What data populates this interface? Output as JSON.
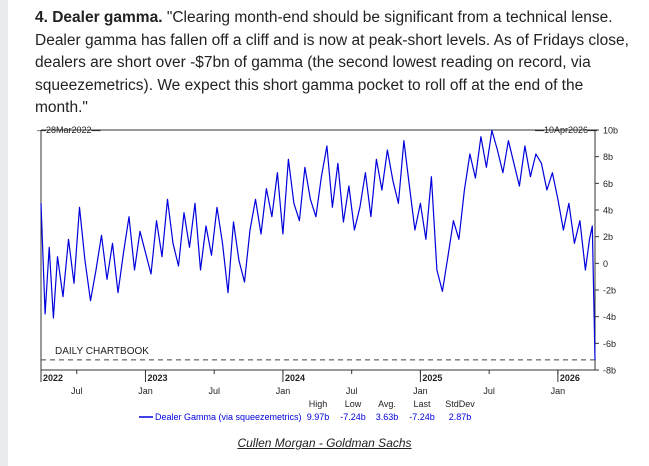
{
  "article": {
    "heading": "4. Dealer gamma.",
    "body": "\"Clearing month-end should be significant from a technical lense. Dealer gamma has fallen off a cliff and is now at peak-short levels. As of Fridays close, dealers are short over -$7bn of gamma (the second lowest reading on record, via squeezemetrics). We expect this short gamma pocket to roll off at the end of the month.\"",
    "caption": "Cullen Morgan - Goldman Sachs"
  },
  "colors": {
    "series": "#0000dd",
    "axis": "#333333",
    "text": "#222222"
  },
  "chart_data": {
    "type": "line",
    "title": "",
    "date_start_label": "28Mar2022",
    "date_end_label": "10Apr2026",
    "watermark": "DAILY CHARTBOOK",
    "ylim": [
      -8,
      10
    ],
    "y_ticks": [
      "10b",
      "8b",
      "6b",
      "4b",
      "2b",
      "0",
      "-2b",
      "-4b",
      "-6b",
      "-8b"
    ],
    "y_tick_values": [
      10,
      8,
      6,
      4,
      2,
      0,
      -2,
      -4,
      -6,
      -8
    ],
    "x_year_labels": [
      {
        "label": "2022",
        "t": 2022.24
      },
      {
        "label": "2023",
        "t": 2023.0
      },
      {
        "label": "2024",
        "t": 2024.0
      },
      {
        "label": "2025",
        "t": 2025.0
      },
      {
        "label": "2026",
        "t": 2026.0
      }
    ],
    "x_month_labels": [
      {
        "label": "Jul",
        "t": 2022.5
      },
      {
        "label": "Jan",
        "t": 2023.0
      },
      {
        "label": "Jul",
        "t": 2023.5
      },
      {
        "label": "Jan",
        "t": 2024.0
      },
      {
        "label": "Jul",
        "t": 2024.5
      },
      {
        "label": "Jan",
        "t": 2025.0
      },
      {
        "label": "Jul",
        "t": 2025.5
      },
      {
        "label": "Jan",
        "t": 2026.0
      }
    ],
    "x_range": [
      2022.24,
      2026.27
    ],
    "reference_line": -7.24,
    "series": [
      {
        "name": "Dealer Gamma (via squeezemetrics)",
        "x": [
          2022.24,
          2022.27,
          2022.3,
          2022.33,
          2022.36,
          2022.4,
          2022.44,
          2022.48,
          2022.52,
          2022.56,
          2022.6,
          2022.64,
          2022.68,
          2022.72,
          2022.76,
          2022.8,
          2022.84,
          2022.88,
          2022.92,
          2022.96,
          2023.0,
          2023.04,
          2023.08,
          2023.12,
          2023.16,
          2023.2,
          2023.24,
          2023.28,
          2023.32,
          2023.36,
          2023.4,
          2023.44,
          2023.48,
          2023.52,
          2023.56,
          2023.6,
          2023.64,
          2023.68,
          2023.72,
          2023.76,
          2023.8,
          2023.84,
          2023.88,
          2023.92,
          2023.96,
          2024.0,
          2024.04,
          2024.08,
          2024.12,
          2024.16,
          2024.2,
          2024.24,
          2024.28,
          2024.32,
          2024.36,
          2024.4,
          2024.44,
          2024.48,
          2024.52,
          2024.56,
          2024.6,
          2024.64,
          2024.68,
          2024.72,
          2024.76,
          2024.8,
          2024.84,
          2024.88,
          2024.92,
          2024.96,
          2025.0,
          2025.04,
          2025.08,
          2025.12,
          2025.16,
          2025.2,
          2025.24,
          2025.28,
          2025.32,
          2025.36,
          2025.4,
          2025.44,
          2025.48,
          2025.52,
          2025.56,
          2025.6,
          2025.64,
          2025.68,
          2025.72,
          2025.76,
          2025.8,
          2025.84,
          2025.88,
          2025.92,
          2025.96,
          2026.0,
          2026.04,
          2026.08,
          2026.12,
          2026.16,
          2026.2,
          2026.23,
          2026.25,
          2026.27
        ],
        "values": [
          4.5,
          -3.8,
          1.2,
          -4.1,
          0.5,
          -2.5,
          1.8,
          -1.5,
          4.2,
          0.2,
          -2.8,
          -0.5,
          2.1,
          -1.2,
          1.5,
          -2.2,
          0.8,
          3.5,
          -0.5,
          2.4,
          0.8,
          -0.8,
          3.2,
          0.5,
          4.8,
          1.5,
          -0.2,
          3.8,
          1.2,
          4.5,
          -0.5,
          2.8,
          0.6,
          4.2,
          1.5,
          -2.2,
          3.1,
          0.2,
          -1.4,
          2.5,
          4.8,
          2.2,
          5.6,
          3.5,
          6.8,
          2.2,
          7.8,
          4.5,
          3.2,
          7.2,
          4.8,
          3.5,
          6.5,
          8.8,
          4.2,
          7.5,
          3.1,
          5.8,
          2.5,
          4.2,
          6.8,
          3.5,
          7.8,
          5.5,
          8.5,
          6.2,
          4.5,
          9.2,
          5.8,
          2.5,
          4.5,
          1.8,
          6.5,
          -0.5,
          -2.1,
          0.5,
          3.2,
          1.8,
          5.5,
          8.2,
          6.4,
          9.5,
          7.2,
          9.97,
          8.5,
          6.8,
          9.2,
          7.5,
          5.8,
          8.8,
          6.5,
          8.2,
          7.5,
          5.5,
          6.8,
          4.8,
          2.5,
          4.5,
          1.5,
          3.2,
          -0.5,
          1.8,
          2.8,
          -7.24
        ]
      }
    ],
    "stats": {
      "headers": [
        "High",
        "Low",
        "Avg.",
        "Last",
        "StdDev"
      ],
      "values": [
        "9.97b",
        "-7.24b",
        "3.63b",
        "-7.24b",
        "2.87b"
      ]
    }
  }
}
